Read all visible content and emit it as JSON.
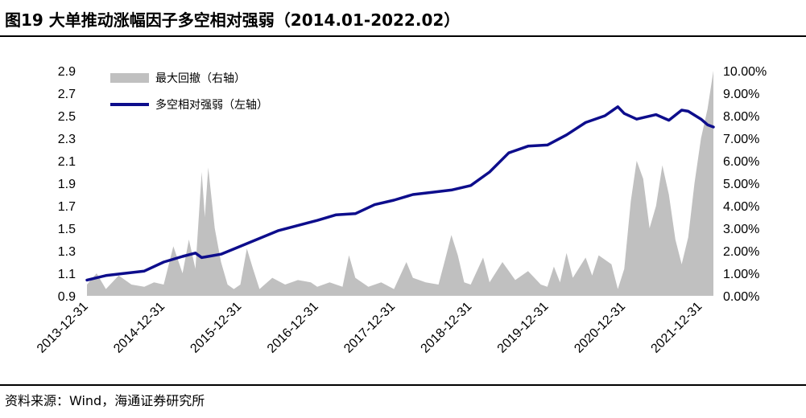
{
  "header": {
    "title": "图19 大单推动涨幅因子多空相对强弱（2014.01-2022.02）"
  },
  "footer": {
    "source": "资料来源：Wind，海通证券研究所"
  },
  "colors": {
    "line": "#0d0d8c",
    "area": "#c0c0c0",
    "rule": "#000000"
  },
  "chart_data": {
    "type": "line+area",
    "x_range": [
      "2013-12-31",
      "2022-02-28"
    ],
    "x_tick_labels": [
      "2013-12-31",
      "2014-12-31",
      "2015-12-31",
      "2016-12-31",
      "2017-12-31",
      "2018-12-31",
      "2019-12-31",
      "2020-12-31",
      "2021-12-31"
    ],
    "y_left": {
      "ylim": [
        0.9,
        2.9
      ],
      "tick_labels": [
        "0.9",
        "1.1",
        "1.3",
        "1.5",
        "1.7",
        "1.9",
        "2.1",
        "2.3",
        "2.5",
        "2.7",
        "2.9"
      ]
    },
    "y_right": {
      "ylim": [
        0,
        10
      ],
      "tick_labels": [
        "0.00%",
        "1.00%",
        "2.00%",
        "3.00%",
        "4.00%",
        "5.00%",
        "6.00%",
        "7.00%",
        "8.00%",
        "9.00%",
        "10.00%"
      ]
    },
    "legend": {
      "placement": "top-left"
    },
    "series": [
      {
        "name": "最大回撤（右轴）",
        "type": "area",
        "axis": "right",
        "unit": "%",
        "points": [
          [
            "2013-12-31",
            0.5
          ],
          [
            "2014-02-15",
            1.0
          ],
          [
            "2014-03-31",
            0.3
          ],
          [
            "2014-05-31",
            0.9
          ],
          [
            "2014-07-31",
            0.5
          ],
          [
            "2014-09-30",
            0.4
          ],
          [
            "2014-11-15",
            0.6
          ],
          [
            "2014-12-31",
            0.5
          ],
          [
            "2015-02-15",
            2.2
          ],
          [
            "2015-03-31",
            1.0
          ],
          [
            "2015-04-30",
            2.5
          ],
          [
            "2015-05-31",
            1.2
          ],
          [
            "2015-06-30",
            5.5
          ],
          [
            "2015-07-15",
            3.5
          ],
          [
            "2015-07-31",
            5.7
          ],
          [
            "2015-08-31",
            3.0
          ],
          [
            "2015-09-30",
            1.5
          ],
          [
            "2015-10-31",
            0.5
          ],
          [
            "2015-11-30",
            0.3
          ],
          [
            "2015-12-31",
            0.5
          ],
          [
            "2016-01-31",
            2.1
          ],
          [
            "2016-02-29",
            1.2
          ],
          [
            "2016-03-31",
            0.3
          ],
          [
            "2016-05-31",
            0.8
          ],
          [
            "2016-07-31",
            0.5
          ],
          [
            "2016-09-30",
            0.7
          ],
          [
            "2016-11-30",
            0.6
          ],
          [
            "2016-12-31",
            0.4
          ],
          [
            "2017-02-28",
            0.6
          ],
          [
            "2017-04-30",
            0.4
          ],
          [
            "2017-05-31",
            1.8
          ],
          [
            "2017-06-30",
            0.8
          ],
          [
            "2017-08-31",
            0.4
          ],
          [
            "2017-10-31",
            0.6
          ],
          [
            "2017-12-31",
            0.3
          ],
          [
            "2018-02-28",
            1.5
          ],
          [
            "2018-03-31",
            0.8
          ],
          [
            "2018-05-31",
            0.6
          ],
          [
            "2018-07-31",
            0.5
          ],
          [
            "2018-08-31",
            1.6
          ],
          [
            "2018-09-30",
            2.7
          ],
          [
            "2018-10-31",
            1.8
          ],
          [
            "2018-11-30",
            0.6
          ],
          [
            "2018-12-31",
            0.5
          ],
          [
            "2019-02-28",
            1.7
          ],
          [
            "2019-03-31",
            0.6
          ],
          [
            "2019-05-31",
            1.5
          ],
          [
            "2019-07-31",
            0.7
          ],
          [
            "2019-09-30",
            1.1
          ],
          [
            "2019-11-30",
            0.5
          ],
          [
            "2019-12-31",
            0.4
          ],
          [
            "2020-01-31",
            1.3
          ],
          [
            "2020-02-29",
            0.6
          ],
          [
            "2020-03-31",
            1.9
          ],
          [
            "2020-04-30",
            0.8
          ],
          [
            "2020-06-30",
            1.7
          ],
          [
            "2020-07-31",
            0.9
          ],
          [
            "2020-08-31",
            1.8
          ],
          [
            "2020-10-31",
            1.4
          ],
          [
            "2020-11-30",
            0.3
          ],
          [
            "2020-12-31",
            1.2
          ],
          [
            "2021-01-31",
            4.2
          ],
          [
            "2021-02-28",
            6.0
          ],
          [
            "2021-03-31",
            5.2
          ],
          [
            "2021-04-30",
            3.0
          ],
          [
            "2021-05-31",
            4.0
          ],
          [
            "2021-06-30",
            5.8
          ],
          [
            "2021-07-31",
            4.5
          ],
          [
            "2021-08-31",
            2.5
          ],
          [
            "2021-09-30",
            1.4
          ],
          [
            "2021-10-31",
            2.6
          ],
          [
            "2021-11-30",
            5.0
          ],
          [
            "2021-12-31",
            7.0
          ],
          [
            "2022-01-31",
            8.3
          ],
          [
            "2022-02-28",
            10.0
          ]
        ]
      },
      {
        "name": "多空相对强弱（左轴）",
        "type": "line",
        "axis": "left",
        "points": [
          [
            "2013-12-31",
            1.04
          ],
          [
            "2014-03-31",
            1.08
          ],
          [
            "2014-06-30",
            1.1
          ],
          [
            "2014-09-30",
            1.12
          ],
          [
            "2014-12-31",
            1.2
          ],
          [
            "2015-03-31",
            1.25
          ],
          [
            "2015-05-31",
            1.28
          ],
          [
            "2015-06-30",
            1.24
          ],
          [
            "2015-09-30",
            1.27
          ],
          [
            "2015-12-31",
            1.34
          ],
          [
            "2016-06-30",
            1.48
          ],
          [
            "2016-12-31",
            1.57
          ],
          [
            "2017-03-31",
            1.62
          ],
          [
            "2017-06-30",
            1.63
          ],
          [
            "2017-09-30",
            1.71
          ],
          [
            "2017-12-31",
            1.75
          ],
          [
            "2018-03-31",
            1.8
          ],
          [
            "2018-06-30",
            1.82
          ],
          [
            "2018-09-30",
            1.84
          ],
          [
            "2018-12-31",
            1.88
          ],
          [
            "2019-03-31",
            2.0
          ],
          [
            "2019-06-30",
            2.17
          ],
          [
            "2019-09-30",
            2.23
          ],
          [
            "2019-12-31",
            2.24
          ],
          [
            "2020-03-31",
            2.33
          ],
          [
            "2020-06-30",
            2.44
          ],
          [
            "2020-09-30",
            2.5
          ],
          [
            "2020-11-30",
            2.58
          ],
          [
            "2020-12-31",
            2.52
          ],
          [
            "2021-02-28",
            2.47
          ],
          [
            "2021-05-31",
            2.51
          ],
          [
            "2021-07-31",
            2.46
          ],
          [
            "2021-09-30",
            2.55
          ],
          [
            "2021-10-31",
            2.54
          ],
          [
            "2021-12-31",
            2.47
          ],
          [
            "2022-01-31",
            2.42
          ],
          [
            "2022-02-28",
            2.4
          ]
        ]
      }
    ]
  }
}
